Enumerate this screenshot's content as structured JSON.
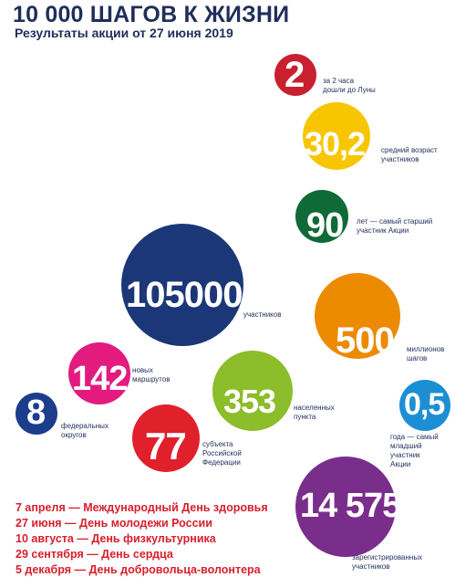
{
  "header": {
    "title": "10 000 ШАГОВ К ЖИЗНИ",
    "subtitle": "Результаты акции от 27 июня 2019"
  },
  "stats": [
    {
      "id": "moon",
      "value": "2",
      "caption": "за 2 часа\nдошли до Луны",
      "color": "#c8202f"
    },
    {
      "id": "age",
      "value": "30,2",
      "caption": "средний возраст\nучастников",
      "color": "#f7c600"
    },
    {
      "id": "oldest",
      "value": "90",
      "caption": "лет — самый старший\nучастник Акции",
      "color": "#0f6a37"
    },
    {
      "id": "participants",
      "value": "105000",
      "caption": "участников",
      "color": "#1c3777"
    },
    {
      "id": "steps",
      "value": "500",
      "caption": "миллионов\nшагов",
      "color": "#ec8a00"
    },
    {
      "id": "routes",
      "value": "142",
      "caption": "новых\nмаршрутов",
      "color": "#e31b7f"
    },
    {
      "id": "settlements",
      "value": "353",
      "caption": "населенных\nпункта",
      "color": "#8cbd2a"
    },
    {
      "id": "youngest",
      "value": "0,5",
      "caption": "года — самый\nмладший\nучастник\nАкции",
      "color": "#1c8fd4"
    },
    {
      "id": "districts",
      "value": "8",
      "caption": "федеральных\nокругов",
      "color": "#1c3d8c"
    },
    {
      "id": "regions",
      "value": "77",
      "caption": "субъекта\nРоссийской\nФедерации",
      "color": "#e0202b"
    },
    {
      "id": "registered",
      "value": "14 575",
      "caption": "зарегистрированных\nучастников",
      "color": "#7a2e8c"
    }
  ],
  "events": [
    "7 апреля — Международный День здоровья",
    "27 июня — День молодежи России",
    "10 августа — День физкультурника",
    "29 сентября — День сердца",
    "5 декабря — День добровольца-волонтера"
  ]
}
